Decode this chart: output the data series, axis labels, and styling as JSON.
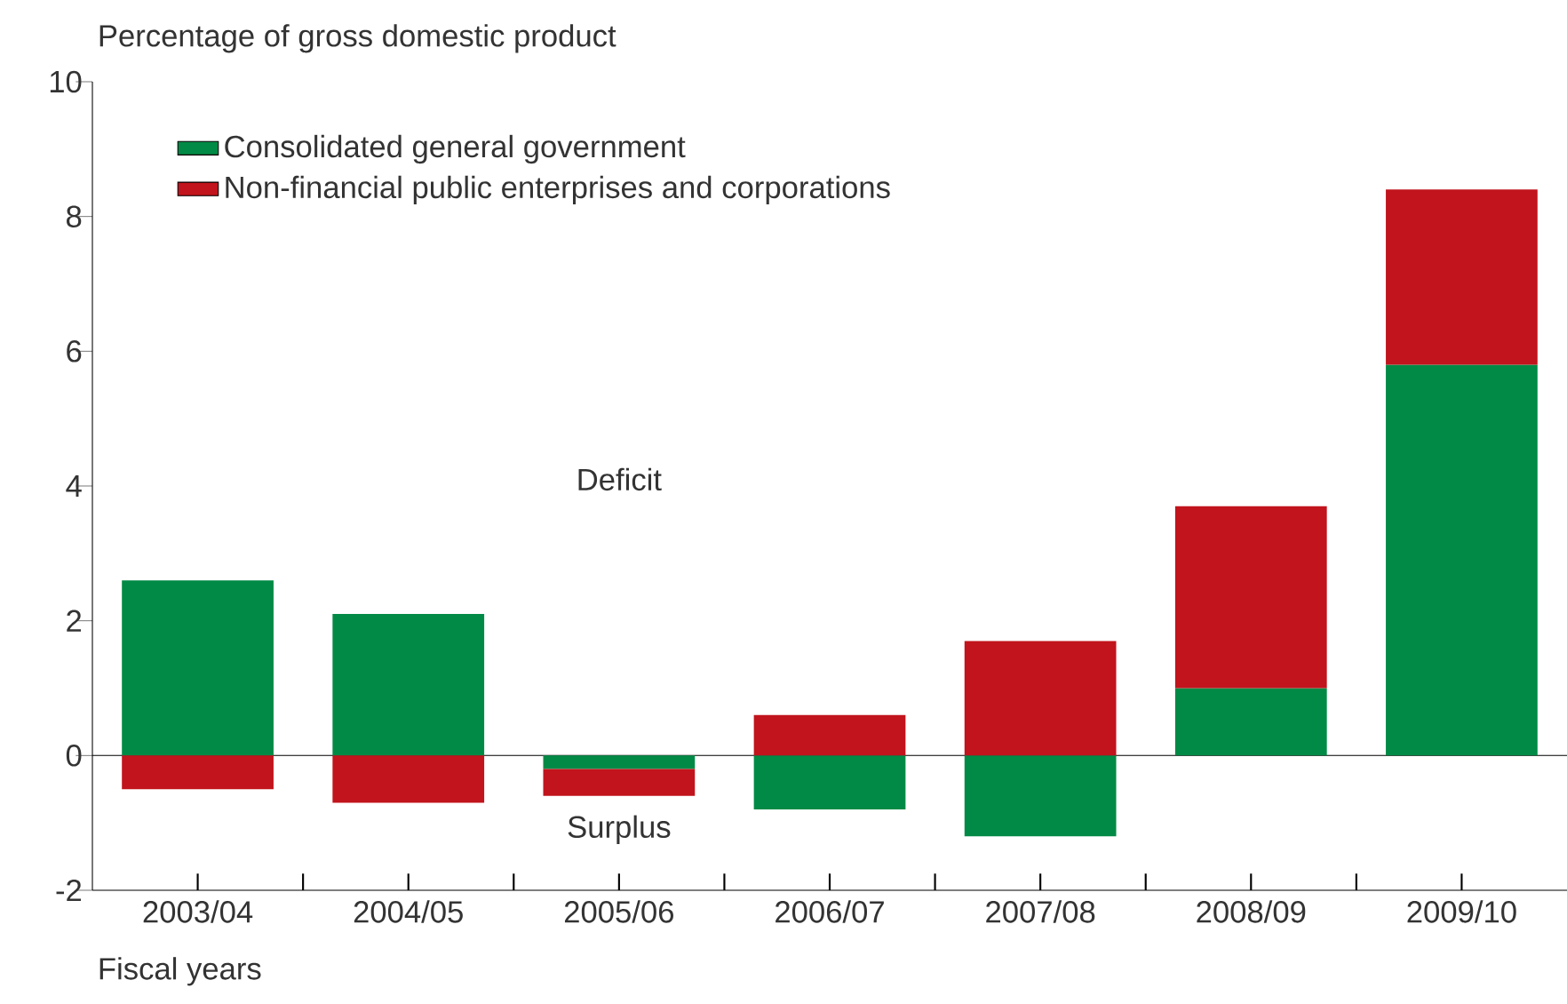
{
  "chart_data": {
    "type": "bar",
    "stacked": true,
    "ylabel": "Percentage of gross domestic product",
    "xlabel": "Fiscal years",
    "categories": [
      "2003/04",
      "2004/05",
      "2005/06",
      "2006/07",
      "2007/08",
      "2008/09",
      "2009/10"
    ],
    "series": [
      {
        "name": "Consolidated general government",
        "color": "#008a45",
        "values": [
          2.6,
          2.1,
          -0.2,
          -0.8,
          -1.2,
          1.0,
          5.8
        ]
      },
      {
        "name": "Non-financial public enterprises and corporations",
        "color": "#c1141c",
        "values": [
          -0.5,
          -0.7,
          -0.4,
          0.6,
          1.7,
          2.7,
          2.6
        ]
      }
    ],
    "ylim": [
      -2,
      10
    ],
    "yticks": [
      -2,
      0,
      2,
      4,
      6,
      8,
      10
    ],
    "legend": "top left",
    "annotations": [
      "Deficit",
      "Surplus"
    ]
  }
}
